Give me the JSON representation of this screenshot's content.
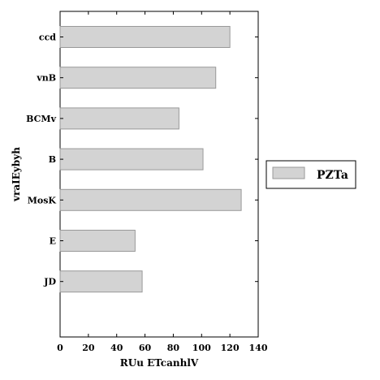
{
  "chart_data": {
    "type": "bar",
    "orientation": "horizontal",
    "categories": [
      "ccd",
      "vnB",
      "BCMv",
      "B",
      "MosK",
      "E",
      "JD"
    ],
    "series": [
      {
        "name": "PZTa",
        "values": [
          120,
          110,
          84,
          101,
          128,
          53,
          58
        ],
        "color": "#d3d3d3"
      }
    ],
    "xlabel": "RUu ETcanhlV",
    "ylabel": "vraIEybyh",
    "xlim": [
      0,
      140
    ],
    "xticks": [
      0,
      20,
      40,
      60,
      80,
      100,
      120,
      140
    ],
    "grid": false,
    "legend_position": "right"
  }
}
